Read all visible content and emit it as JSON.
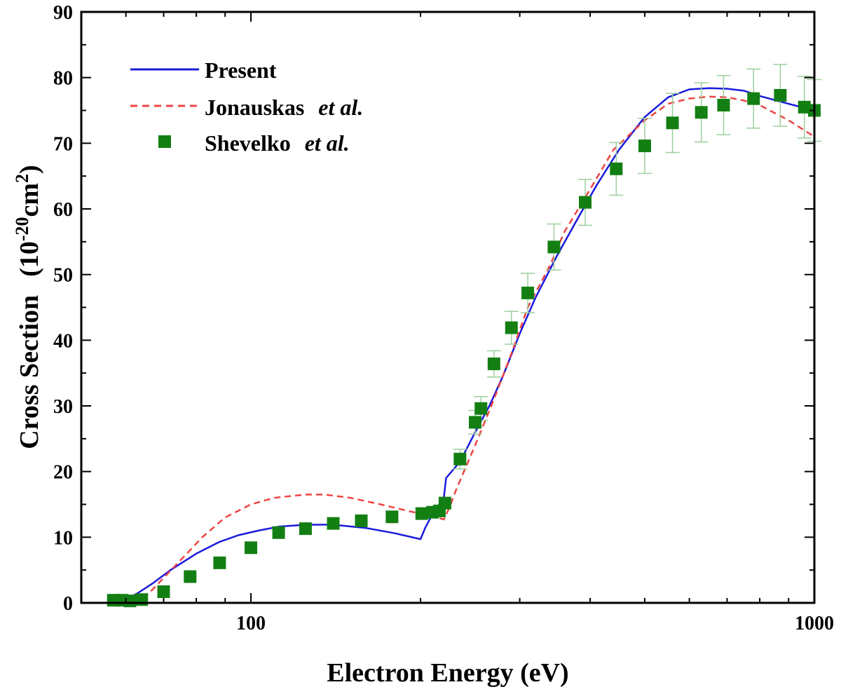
{
  "chart_data": {
    "type": "line",
    "xscale": "log",
    "xlim": [
      50,
      1000
    ],
    "ylim": [
      0,
      90
    ],
    "x_ticks": [
      100,
      1000
    ],
    "x_tick_labels": [
      "100",
      "1000"
    ],
    "y_ticks": [
      0,
      10,
      20,
      30,
      40,
      50,
      60,
      70,
      80,
      90
    ],
    "y_tick_labels": [
      "0",
      "10",
      "20",
      "30",
      "40",
      "50",
      "60",
      "70",
      "80",
      "90"
    ],
    "xlabel": "Electron Energy (eV)",
    "ylabel": {
      "main": "Cross Section",
      "unit_open": "(10",
      "unit_exp1": "-20",
      "unit_mid": "cm",
      "unit_exp2": "2",
      "unit_close": ")"
    },
    "series": [
      {
        "name": "Present",
        "name_suffix": "",
        "style": "solid-line",
        "color": "#1a1adc",
        "points": [
          [
            50,
            0
          ],
          [
            55,
            0
          ],
          [
            58,
            0.3
          ],
          [
            61,
            0.8
          ],
          [
            63,
            1.5
          ],
          [
            67,
            3.0
          ],
          [
            72,
            5.0
          ],
          [
            80,
            7.5
          ],
          [
            88,
            9.3
          ],
          [
            95,
            10.3
          ],
          [
            103,
            11.0
          ],
          [
            112,
            11.6
          ],
          [
            125,
            11.9
          ],
          [
            140,
            11.9
          ],
          [
            160,
            11.4
          ],
          [
            180,
            10.6
          ],
          [
            200,
            9.7
          ],
          [
            204,
            11.5
          ],
          [
            210,
            13.5
          ],
          [
            220,
            16.0
          ],
          [
            222,
            19.0
          ],
          [
            235,
            21.5
          ],
          [
            250,
            26.0
          ],
          [
            265,
            30.0
          ],
          [
            280,
            34.5
          ],
          [
            300,
            41.0
          ],
          [
            320,
            46.5
          ],
          [
            350,
            53.0
          ],
          [
            380,
            58.5
          ],
          [
            410,
            63.5
          ],
          [
            450,
            69.0
          ],
          [
            500,
            74.0
          ],
          [
            550,
            77.0
          ],
          [
            600,
            78.2
          ],
          [
            650,
            78.4
          ],
          [
            700,
            78.3
          ],
          [
            750,
            78.0
          ],
          [
            800,
            77.2
          ],
          [
            900,
            76.0
          ],
          [
            1000,
            75.0
          ]
        ]
      },
      {
        "name": "Jonauskas",
        "name_suffix": "et al.",
        "style": "dashed-line",
        "color": "#ee4444",
        "points": [
          [
            62,
            0
          ],
          [
            64,
            0.5
          ],
          [
            66,
            1.5
          ],
          [
            70,
            3.8
          ],
          [
            75,
            6.5
          ],
          [
            82,
            10.0
          ],
          [
            90,
            13.0
          ],
          [
            100,
            15.0
          ],
          [
            110,
            16.0
          ],
          [
            125,
            16.5
          ],
          [
            135,
            16.5
          ],
          [
            150,
            16.0
          ],
          [
            170,
            15.0
          ],
          [
            190,
            14.0
          ],
          [
            210,
            13.2
          ],
          [
            220,
            12.7
          ],
          [
            225,
            14.5
          ],
          [
            232,
            17.5
          ],
          [
            250,
            24.0
          ],
          [
            270,
            31.0
          ],
          [
            290,
            38.0
          ],
          [
            310,
            45.0
          ],
          [
            340,
            51.5
          ],
          [
            360,
            56.5
          ],
          [
            400,
            63.0
          ],
          [
            440,
            69.0
          ],
          [
            500,
            73.5
          ],
          [
            550,
            76.0
          ],
          [
            600,
            76.8
          ],
          [
            650,
            77.1
          ],
          [
            700,
            77.0
          ],
          [
            750,
            76.5
          ],
          [
            800,
            75.8
          ],
          [
            900,
            73.5
          ],
          [
            1000,
            71.0
          ]
        ]
      },
      {
        "name": "Shevelko",
        "name_suffix": "et al.",
        "style": "square-markers",
        "color": "#137f13",
        "errorbar_color": "#9ccf9c",
        "points": [
          [
            57,
            0.4
          ],
          [
            59,
            0.4
          ],
          [
            61,
            0.3
          ],
          [
            64,
            0.5
          ],
          [
            70,
            1.7
          ],
          [
            78,
            4.0
          ],
          [
            88,
            6.1
          ],
          [
            100,
            8.4
          ],
          [
            112,
            10.7
          ],
          [
            125,
            11.3
          ],
          [
            140,
            12.1
          ],
          [
            157,
            12.5
          ],
          [
            178,
            13.1
          ],
          [
            201,
            13.6
          ],
          [
            210,
            13.8
          ],
          [
            216,
            14.0
          ],
          [
            221,
            15.2
          ],
          [
            235,
            21.9
          ],
          [
            250,
            27.5
          ],
          [
            256,
            29.6
          ],
          [
            270,
            36.4
          ],
          [
            290,
            41.9
          ],
          [
            310,
            47.2
          ],
          [
            345,
            54.2
          ],
          [
            392,
            61.0
          ],
          [
            445,
            66.1
          ],
          [
            500,
            69.6
          ],
          [
            560,
            73.1
          ],
          [
            630,
            74.7
          ],
          [
            690,
            75.8
          ],
          [
            780,
            76.8
          ],
          [
            870,
            77.3
          ],
          [
            960,
            75.5
          ],
          [
            1000,
            75.0
          ]
        ],
        "errors": [
          [
            57,
            0
          ],
          [
            59,
            0
          ],
          [
            61,
            0
          ],
          [
            64,
            0
          ],
          [
            70,
            0
          ],
          [
            78,
            0
          ],
          [
            88,
            0
          ],
          [
            100,
            0
          ],
          [
            112,
            0
          ],
          [
            125,
            0
          ],
          [
            140,
            0
          ],
          [
            157,
            0
          ],
          [
            178,
            0
          ],
          [
            201,
            0
          ],
          [
            210,
            0
          ],
          [
            216,
            0
          ],
          [
            221,
            0
          ],
          [
            235,
            1.5
          ],
          [
            250,
            1.8
          ],
          [
            256,
            1.8
          ],
          [
            270,
            2.0
          ],
          [
            290,
            2.5
          ],
          [
            310,
            3.0
          ],
          [
            345,
            3.5
          ],
          [
            392,
            3.5
          ],
          [
            445,
            4.0
          ],
          [
            500,
            4.2
          ],
          [
            560,
            4.5
          ],
          [
            630,
            4.5
          ],
          [
            690,
            4.5
          ],
          [
            780,
            4.5
          ],
          [
            870,
            4.7
          ],
          [
            960,
            4.7
          ],
          [
            1000,
            4.7
          ]
        ]
      }
    ],
    "legend_position": "top-left"
  }
}
